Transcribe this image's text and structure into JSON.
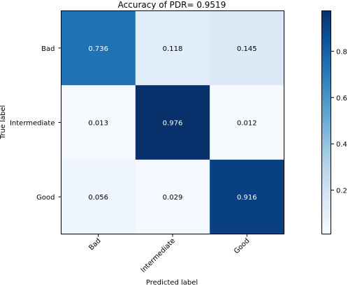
{
  "chart_data": {
    "type": "heatmap",
    "title": "Accuracy of PDR= 0.9519",
    "xlabel": "Predicted label",
    "ylabel": "True label",
    "row_labels": [
      "Bad",
      "Intermediate",
      "Good"
    ],
    "col_labels": [
      "Bad",
      "Intermediate",
      "Good"
    ],
    "values": [
      [
        0.736,
        0.118,
        0.145
      ],
      [
        0.013,
        0.976,
        0.012
      ],
      [
        0.056,
        0.029,
        0.916
      ]
    ],
    "cell_labels": [
      [
        "0.736",
        "0.118",
        "0.145"
      ],
      [
        "0.013",
        "0.976",
        "0.012"
      ],
      [
        "0.056",
        "0.029",
        "0.916"
      ]
    ],
    "colormap": "Blues",
    "vmin": 0.012,
    "vmax": 0.976,
    "colorbar_ticks": [
      0.2,
      0.4,
      0.6,
      0.8
    ],
    "colorbar_tick_labels": [
      "0.2",
      "0.4",
      "0.6",
      "0.8"
    ],
    "grid": false
  }
}
